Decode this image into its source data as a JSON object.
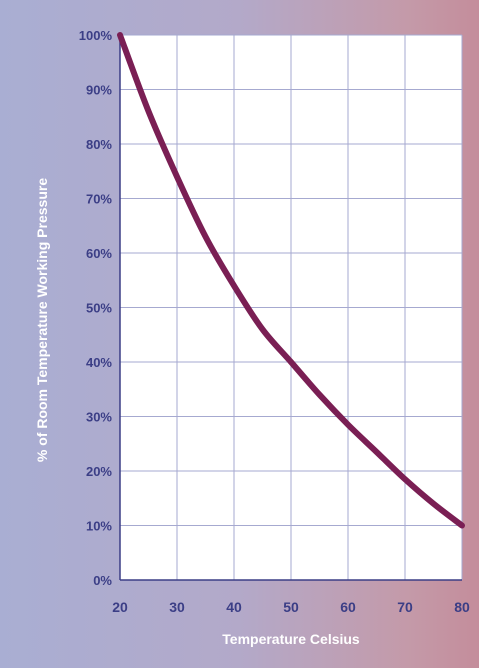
{
  "chart_data": {
    "type": "line",
    "title": "",
    "xlabel": "Temperature Celsius",
    "ylabel": "% of Room Temperature Working Pressure",
    "xlim": [
      20,
      80
    ],
    "ylim": [
      0,
      100
    ],
    "x_ticks": [
      20,
      30,
      40,
      50,
      60,
      70,
      80
    ],
    "y_ticks": [
      0,
      10,
      20,
      30,
      40,
      50,
      60,
      70,
      80,
      90,
      100
    ],
    "y_tick_suffix": "%",
    "grid": true,
    "legend": "none",
    "series": [
      {
        "color": "#7a1f54",
        "x": [
          20,
          25,
          30,
          35,
          40,
          45,
          50,
          55,
          60,
          65,
          70,
          75,
          80
        ],
        "y": [
          100,
          86,
          74,
          63,
          54,
          46,
          40,
          34,
          28.5,
          23.5,
          18.5,
          14,
          10
        ]
      }
    ]
  }
}
